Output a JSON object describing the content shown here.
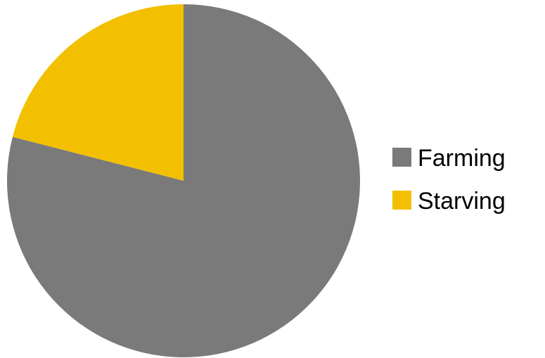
{
  "chart_data": {
    "type": "pie",
    "categories": [
      "Farming",
      "Starving"
    ],
    "values": [
      79,
      21
    ],
    "colors": [
      "#7a7a7a",
      "#f2c000"
    ],
    "title": "",
    "legend": "right"
  }
}
